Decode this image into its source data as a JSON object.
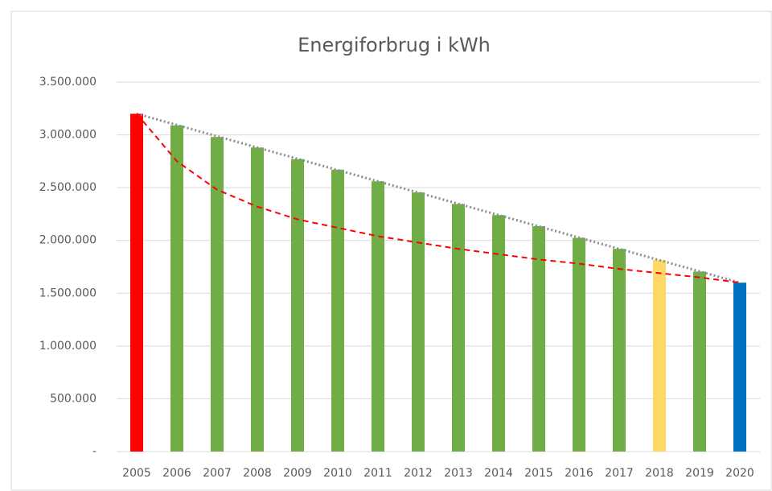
{
  "chart_data": {
    "type": "bar",
    "title": "Energiforbrug i kWh",
    "categories": [
      "2005",
      "2006",
      "2007",
      "2008",
      "2009",
      "2010",
      "2011",
      "2012",
      "2013",
      "2014",
      "2015",
      "2016",
      "2017",
      "2018",
      "2019",
      "2020"
    ],
    "values": [
      3200000,
      3090000,
      2980000,
      2880000,
      2770000,
      2670000,
      2560000,
      2455000,
      2345000,
      2240000,
      2135000,
      2025000,
      1920000,
      1815000,
      1705000,
      1600000
    ],
    "colors": [
      "#ff0000",
      "#70ad47",
      "#70ad47",
      "#70ad47",
      "#70ad47",
      "#70ad47",
      "#70ad47",
      "#70ad47",
      "#70ad47",
      "#70ad47",
      "#70ad47",
      "#70ad47",
      "#70ad47",
      "#ffd966",
      "#70ad47",
      "#0070c0"
    ],
    "trend_lines": [
      {
        "color": "#8c8c8c",
        "style": "dotted",
        "values": [
          3200000,
          3093333,
          2986667,
          2880000,
          2773333,
          2666667,
          2560000,
          2453333,
          2346667,
          2240000,
          2133333,
          2026667,
          1920000,
          1813333,
          1706667,
          1600000
        ]
      },
      {
        "color": "#ff0000",
        "style": "dashed",
        "values": [
          3200000,
          2750000,
          2480000,
          2320000,
          2200000,
          2120000,
          2040000,
          1980000,
          1920000,
          1870000,
          1820000,
          1780000,
          1730000,
          1690000,
          1650000,
          1600000
        ]
      }
    ],
    "ylim": [
      0,
      3500000
    ],
    "yticks": [
      {
        "value": 0,
        "label": "-"
      },
      {
        "value": 500000,
        "label": "500.000"
      },
      {
        "value": 1000000,
        "label": "1.000.000"
      },
      {
        "value": 1500000,
        "label": "1.500.000"
      },
      {
        "value": 2000000,
        "label": "2.000.000"
      },
      {
        "value": 2500000,
        "label": "2.500.000"
      },
      {
        "value": 3000000,
        "label": "3.000.000"
      },
      {
        "value": 3500000,
        "label": "3.500.000"
      }
    ],
    "grid": true
  }
}
